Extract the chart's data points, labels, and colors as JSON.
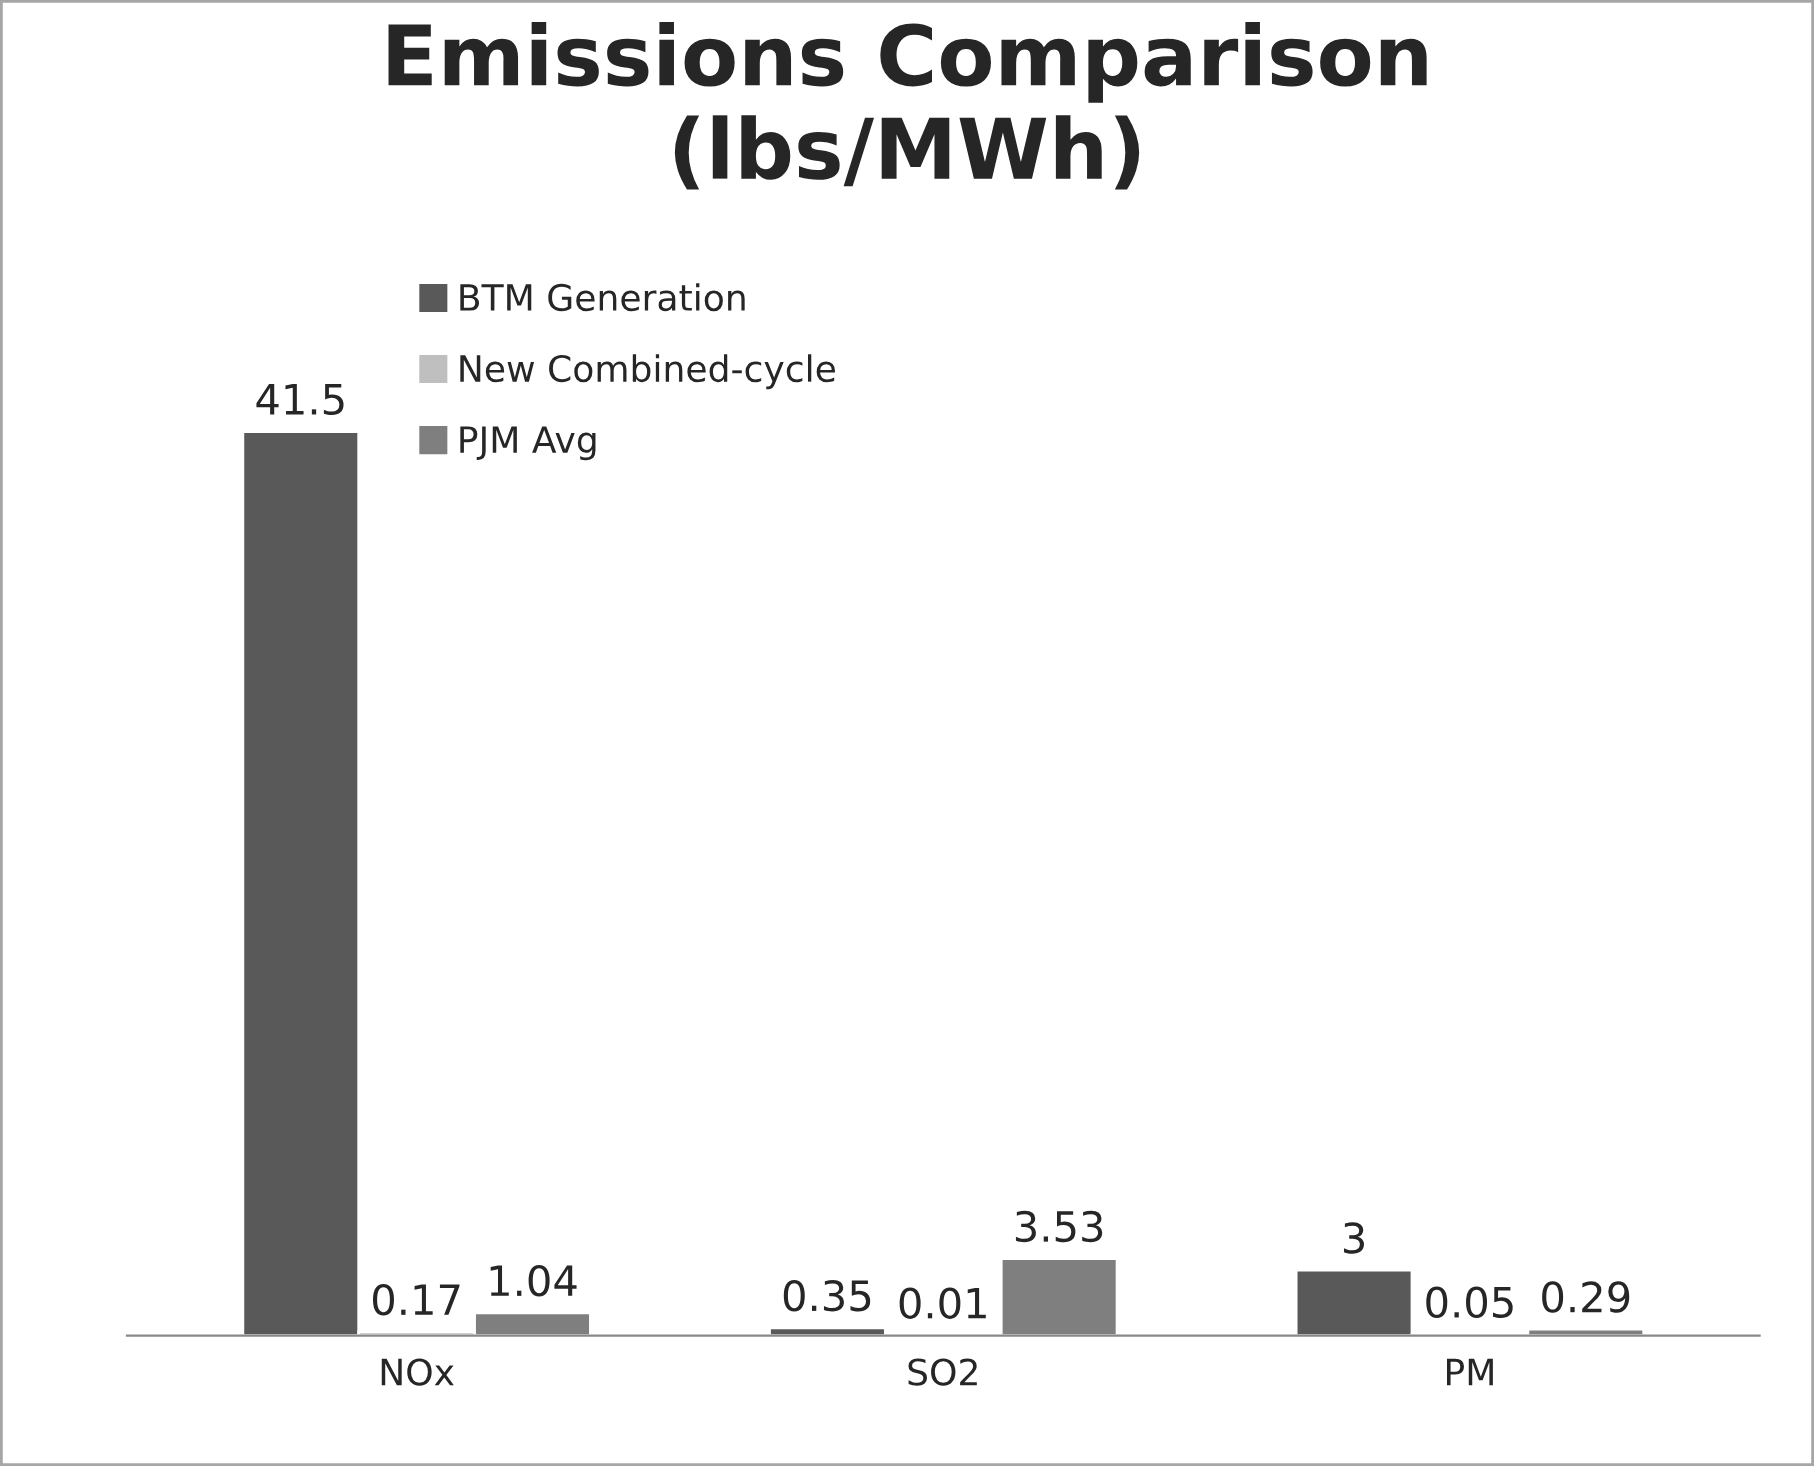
{
  "chart_data": {
    "type": "bar",
    "title": "Emissions Comparison\n(lbs/MWh)",
    "categories": [
      "NOx",
      "SO2",
      "PM"
    ],
    "series": [
      {
        "name": "BTM Generation",
        "color": "#595959",
        "values": [
          41.5,
          0.35,
          3
        ]
      },
      {
        "name": "New Combined-cycle",
        "color": "#bfbfbf",
        "values": [
          0.17,
          0.01,
          0.05
        ]
      },
      {
        "name": "PJM Avg",
        "color": "#7f7f7f",
        "values": [
          1.04,
          3.53,
          0.29
        ]
      }
    ],
    "data_labels": true,
    "legend": "top left",
    "grid": false
  }
}
